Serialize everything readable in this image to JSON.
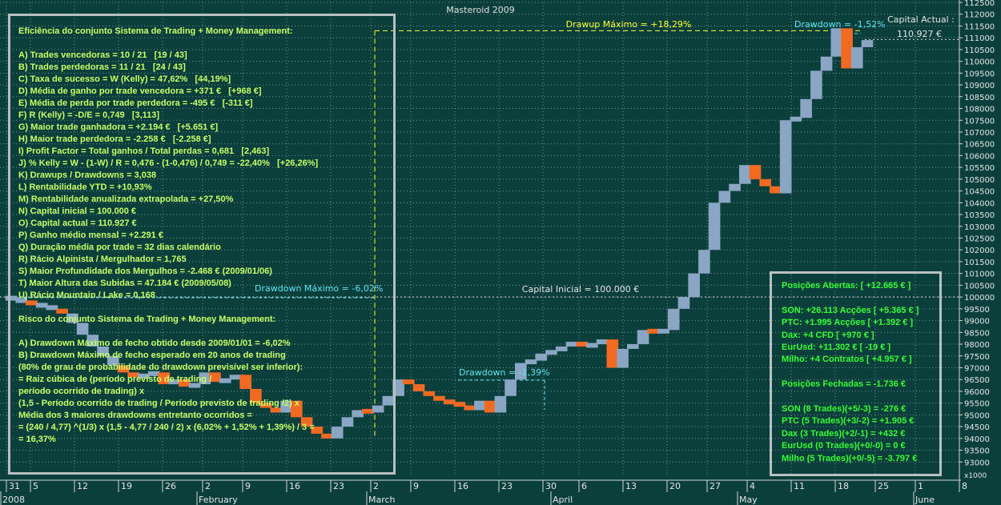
{
  "chart_data": {
    "type": "candlestick",
    "title": "Masteroid 2009",
    "ylim": [
      92500,
      112500
    ],
    "y_ticks": [
      93000,
      93500,
      94000,
      94500,
      95000,
      95500,
      96000,
      96500,
      97000,
      97500,
      98000,
      98500,
      99000,
      99500,
      100000,
      100500,
      101000,
      101500,
      102000,
      102500,
      103000,
      103500,
      104000,
      104500,
      105000,
      105500,
      106000,
      106500,
      107000,
      107500,
      108000,
      108500,
      109000,
      109500,
      110000,
      110500,
      111000,
      111500,
      112000,
      112500
    ],
    "y_scale_label": "x1000",
    "x_tick_labels": [
      "31",
      "5",
      "12",
      "19",
      "26",
      "2",
      "9",
      "16",
      "23",
      "2",
      "9",
      "16",
      "23",
      "30",
      "6",
      "13",
      "20",
      "27",
      "4",
      "11",
      "18",
      "25",
      "1",
      "8"
    ],
    "month_labels": [
      "2008",
      "February",
      "March",
      "April",
      "May",
      "June"
    ],
    "bars": [
      [
        100000,
        99900,
        "b"
      ],
      [
        99900,
        99800,
        "b"
      ],
      [
        99800,
        99700,
        "o"
      ],
      [
        99700,
        99600,
        "b"
      ],
      [
        99600,
        99500,
        "b"
      ],
      [
        99500,
        99300,
        "o"
      ],
      [
        99300,
        98900,
        "b"
      ],
      [
        98900,
        98400,
        "b"
      ],
      [
        98400,
        97900,
        "b"
      ],
      [
        97900,
        97500,
        "b"
      ],
      [
        97500,
        97100,
        "b"
      ],
      [
        97100,
        96800,
        "o"
      ],
      [
        96800,
        96600,
        "o"
      ],
      [
        96600,
        96700,
        "b"
      ],
      [
        96700,
        96800,
        "b"
      ],
      [
        96800,
        96300,
        "o"
      ],
      [
        96300,
        96500,
        "b"
      ],
      [
        96500,
        96200,
        "o"
      ],
      [
        96200,
        96300,
        "b"
      ],
      [
        96300,
        96800,
        "b"
      ],
      [
        96800,
        96400,
        "o"
      ],
      [
        96400,
        96500,
        "b"
      ],
      [
        96500,
        96700,
        "b"
      ],
      [
        96700,
        96100,
        "o"
      ],
      [
        96100,
        95500,
        "o"
      ],
      [
        95500,
        95300,
        "o"
      ],
      [
        95300,
        95100,
        "o"
      ],
      [
        95100,
        95600,
        "b"
      ],
      [
        95600,
        94900,
        "o"
      ],
      [
        94900,
        94500,
        "o"
      ],
      [
        94500,
        94200,
        "o"
      ],
      [
        94200,
        94000,
        "o"
      ],
      [
        94000,
        94500,
        "b"
      ],
      [
        94500,
        94900,
        "b"
      ],
      [
        94900,
        95200,
        "b"
      ],
      [
        95200,
        95100,
        "o"
      ],
      [
        95100,
        95400,
        "b"
      ],
      [
        95400,
        95800,
        "b"
      ],
      [
        95800,
        96500,
        "b"
      ],
      [
        96500,
        96300,
        "o"
      ],
      [
        96300,
        96000,
        "o"
      ],
      [
        96000,
        95800,
        "o"
      ],
      [
        95800,
        95600,
        "o"
      ],
      [
        95600,
        95500,
        "o"
      ],
      [
        95500,
        95400,
        "o"
      ],
      [
        95400,
        95200,
        "o"
      ],
      [
        95200,
        95600,
        "b"
      ],
      [
        95600,
        95100,
        "o"
      ],
      [
        95100,
        95800,
        "b"
      ],
      [
        95800,
        96500,
        "b"
      ],
      [
        96500,
        97200,
        "b"
      ],
      [
        97200,
        97300,
        "b"
      ],
      [
        97300,
        97600,
        "b"
      ],
      [
        97600,
        97700,
        "b"
      ],
      [
        97700,
        97900,
        "b"
      ],
      [
        97900,
        98100,
        "b"
      ],
      [
        98100,
        97900,
        "o"
      ],
      [
        97900,
        98000,
        "b"
      ],
      [
        98000,
        98200,
        "b"
      ],
      [
        98200,
        97000,
        "o"
      ],
      [
        97000,
        97800,
        "b"
      ],
      [
        97800,
        98000,
        "b"
      ],
      [
        98000,
        98600,
        "b"
      ],
      [
        98600,
        98500,
        "o"
      ],
      [
        98500,
        98600,
        "b"
      ],
      [
        98600,
        99500,
        "b"
      ],
      [
        99500,
        100000,
        "b"
      ],
      [
        100000,
        101000,
        "b"
      ],
      [
        101000,
        102000,
        "b"
      ],
      [
        102000,
        104000,
        "b"
      ],
      [
        104000,
        104500,
        "b"
      ],
      [
        104500,
        104800,
        "b"
      ],
      [
        104800,
        105600,
        "b"
      ],
      [
        105600,
        105000,
        "o"
      ],
      [
        105000,
        104700,
        "o"
      ],
      [
        104700,
        104400,
        "o"
      ],
      [
        104400,
        107500,
        "b"
      ],
      [
        107500,
        107600,
        "b"
      ],
      [
        107600,
        108400,
        "b"
      ],
      [
        108400,
        109600,
        "b"
      ],
      [
        109600,
        110200,
        "b"
      ],
      [
        110200,
        111400,
        "b"
      ],
      [
        111400,
        109700,
        "o"
      ],
      [
        109700,
        110600,
        "b"
      ],
      [
        110600,
        110900,
        "b"
      ]
    ],
    "reference_lines": [
      {
        "label": "Capital Inicial = 100.000 €",
        "value": 100000
      },
      {
        "label": "Drawup Máximo = +18,29%",
        "value": 111300
      }
    ],
    "annotations": [
      "Drawdown Máximo = -6,02%",
      "Drawdown = -1,39%",
      "Drawdown = -1,52%"
    ],
    "capital_actual_label": "Capital Actual :",
    "capital_actual_value": "110.927 €",
    "colors": {
      "background": "#0b3f3c",
      "up": "#8aa6c4",
      "down": "#f26a22",
      "ref_line": "#ffff33",
      "annot": "#5fe6f0",
      "grid": "#6f8f8c"
    }
  },
  "panel_left": {
    "lines": [
      "Eficiência do conjunto Sistema de Trading + Money Management:",
      "",
      "A) Trades vencedoras = 10 / 21   [19 / 43]",
      "B) Trades perdedoras = 11 / 21   [24 / 43]",
      "C) Taxa de sucesso = W (Kelly) = 47,62%   [44,19%]",
      "D) Média de ganho por trade vencedora = +371 €   [+968 €]",
      "E) Média de perda por trade perdedora = -495 €   [-311 €]",
      "F) R (Kelly) = -D/E = 0,749   [3,113]",
      "G) Maior trade ganhadora = +2.194 €   [+5.651 €]",
      "H) Maior trade perdedora = -2.258 €   [-2.258 €]",
      "I) Profit Factor = Total ganhos / Total perdas = 0,681   [2,463]",
      "J) % Kelly = W - (1-W) / R = 0,476 - (1-0,476) / 0,749 = -22,40%   [+26,26%]",
      "K) Drawups / Drawdowns = 3,038",
      "L) Rentabilidade YTD = +10,93%",
      "M) Rentabilidade anualizada extrapolada = +27,50%",
      "N) Capital inicial = 100.000 €",
      "O) Capital actual = 110.927 €",
      "P) Ganho médio mensal = +2.291 €",
      "Q) Duração média por trade = 32 dias calendário",
      "R) Rácio Alpinista / Mergulhador = 1,765",
      "S) Maior Profundidade dos Mergulhos = -2.468 € (2009/01/06)",
      "T) Maior Altura das Subidas = 47.184 € (2009/05/08)",
      "U) Rácio Mountain / Lake = 0,168",
      "",
      "Risco do conjunto Sistema de Trading + Money Management:",
      "",
      "A) Drawdown Máximo de fecho obtido desde 2009/01/01 = -6,02%",
      "B) Drawdown Máximo de fecho esperado em 20 anos de trading",
      "(80% de grau de probabilidade do drawdown previsível ser inferior):",
      "= Raiz cúbica de (período previsto de trading /",
      "período ocorrido de trading) x",
      "(1,5 - Período ocorrido de trading / Período previsto de trading /2) x",
      "Média dos 3 maiores drawdowns entretanto ocorridos =",
      "= (240 / 4,77) ^(1/3) x (1,5 - 4,77 / 240 / 2) x (6,02% + 1,52% + 1,39%) / 3 =",
      "= 16,37%"
    ]
  },
  "panel_right": {
    "lines": [
      "Posições Abertas: [ +12.665 € ]",
      "",
      "SON: +26.113 Acções [ +5.365 € ]",
      "PTC: +1.995 Acções [ +1.392 € ]",
      "Dax: +4 CFD [ +970 € ]",
      "EurUsd: +11.302 € [ -19 € ]",
      "Milho: +4 Contratos [ +4.957 € ]",
      "",
      "Posições Fechadas = -1.736 €",
      "",
      "SON (8 Trades)(+5/-3) = -276 €",
      "PTC (5 Trades)(+3/-2) = +1.905 €",
      "Dax (3 Trades)(+2/-1) = +432 €",
      "EurUsd (0 Trades)(+0/-0) = 0 €",
      "Milho (5 Trades)(+0/-5) = -3.797 €"
    ]
  }
}
